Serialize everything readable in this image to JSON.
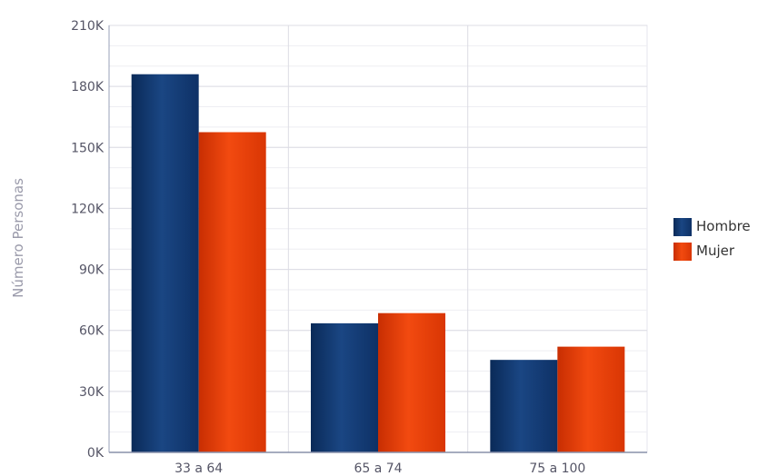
{
  "chart_data": {
    "type": "bar",
    "title": "",
    "xlabel": "",
    "ylabel": "Número Personas",
    "categories": [
      "33 a 64",
      "65 a 74",
      "75 a 100"
    ],
    "series": [
      {
        "name": "Hombre",
        "values": [
          186000,
          63500,
          45500
        ],
        "color": "#12386e"
      },
      {
        "name": "Mujer",
        "values": [
          157500,
          68500,
          52000
        ],
        "color": "#e03a06"
      }
    ],
    "ylim": [
      0,
      210000
    ],
    "yticks": [
      0,
      30000,
      60000,
      90000,
      120000,
      150000,
      180000,
      210000
    ],
    "ytick_labels": [
      "0K",
      "30K",
      "60K",
      "90K",
      "120K",
      "150K",
      "180K",
      "210K"
    ],
    "grid": true,
    "legend_position": "right"
  }
}
